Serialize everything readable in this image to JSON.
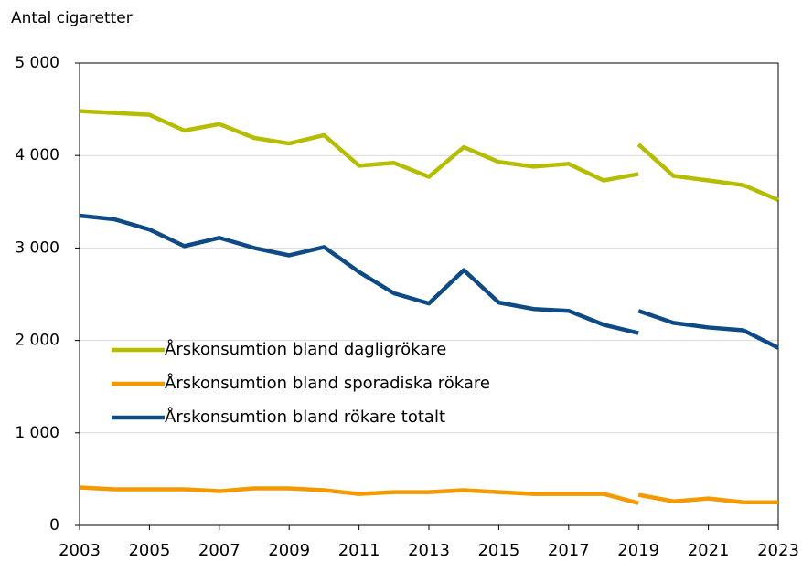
{
  "chart_data": {
    "type": "line",
    "y_label": "Antal cigaretter",
    "x": [
      2003,
      2004,
      2005,
      2006,
      2007,
      2008,
      2009,
      2010,
      2011,
      2012,
      2013,
      2014,
      2015,
      2016,
      2017,
      2018,
      2019,
      2019,
      2019,
      2020,
      2021,
      2022,
      2023
    ],
    "series": [
      {
        "name": "Årskonsumtion bland dagligrökare",
        "color": "#b5bd00",
        "values": [
          4480,
          4460,
          4440,
          4270,
          4340,
          4190,
          4130,
          4220,
          3890,
          3920,
          3770,
          4090,
          3930,
          3880,
          3910,
          3730,
          3800,
          null,
          4120,
          3780,
          3730,
          3680,
          3520
        ]
      },
      {
        "name": "Årskonsumtion bland sporadiska rökare",
        "color": "#f49a00",
        "values": [
          410,
          390,
          390,
          390,
          370,
          400,
          400,
          380,
          340,
          360,
          360,
          380,
          360,
          340,
          340,
          340,
          240,
          null,
          330,
          260,
          290,
          250,
          250
        ]
      },
      {
        "name": "Årskonsumtion bland rökare totalt",
        "color": "#0e4a84",
        "values": [
          3350,
          3310,
          3200,
          3020,
          3110,
          3000,
          2920,
          3010,
          2740,
          2510,
          2400,
          2760,
          2410,
          2340,
          2320,
          2170,
          2080,
          null,
          2320,
          2190,
          2140,
          2110,
          1920
        ]
      }
    ],
    "xlim": [
      2003,
      2023
    ],
    "xticks": [
      2003,
      2005,
      2007,
      2009,
      2011,
      2013,
      2015,
      2017,
      2019,
      2021,
      2023
    ],
    "ylim": [
      0,
      5000
    ],
    "yticks": [
      0,
      {
        "value": 1000,
        "label": "1 000"
      },
      {
        "value": 2000,
        "label": "2 000"
      },
      {
        "value": 3000,
        "label": "3 000"
      },
      {
        "value": 4000,
        "label": "4 000"
      },
      {
        "value": 5000,
        "label": "5 000"
      }
    ],
    "grid": true,
    "legend": "left"
  }
}
